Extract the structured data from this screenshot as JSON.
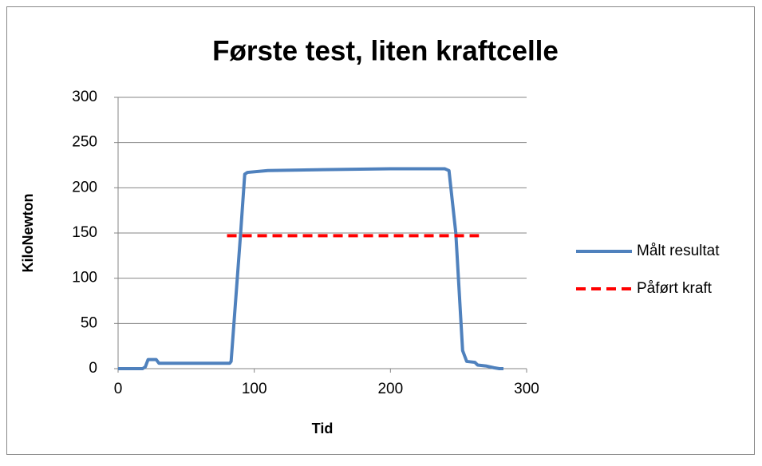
{
  "chart_data": {
    "type": "line",
    "title": "Første test, liten kraftcelle",
    "xlabel": "Tid",
    "ylabel": "KiloNewton",
    "xlim": [
      0,
      300
    ],
    "xticks": [
      0,
      100,
      200,
      300
    ],
    "ylim": [
      0,
      300
    ],
    "yticks": [
      0,
      50,
      100,
      150,
      200,
      250,
      300
    ],
    "grid": true,
    "legend": "right",
    "series": [
      {
        "name": "Målt resultat",
        "color": "#4f81bd",
        "dash": false,
        "x": [
          0,
          18,
          20,
          22,
          28,
          30,
          82,
          83,
          90,
          93,
          95,
          110,
          150,
          200,
          240,
          243,
          248,
          253,
          256,
          262,
          264,
          270,
          276,
          280,
          283
        ],
        "values": [
          0,
          0,
          2,
          10,
          10,
          6,
          6,
          8,
          150,
          215,
          217,
          219,
          220,
          221,
          221,
          219,
          150,
          20,
          8,
          7,
          4,
          3,
          1,
          0,
          0
        ]
      },
      {
        "name": "Påført kraft",
        "color": "#ff0000",
        "dash": true,
        "x": [
          80,
          265
        ],
        "values": [
          147,
          147
        ]
      }
    ]
  }
}
